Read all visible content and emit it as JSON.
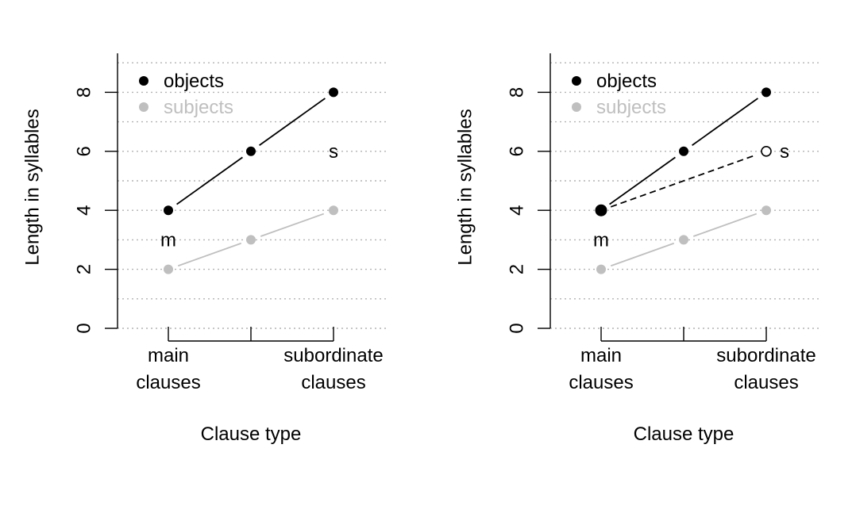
{
  "chart_data": [
    {
      "type": "line",
      "xlabel": "Clause type",
      "ylabel": "Length in syllables",
      "x_positions": [
        1,
        2,
        3
      ],
      "tick_labels": [
        {
          "lines": [
            "main",
            "clauses"
          ],
          "x": 1
        },
        {
          "lines": [
            ""
          ],
          "x": 2
        },
        {
          "lines": [
            "subordinate",
            "clauses"
          ],
          "x": 3
        }
      ],
      "ylim": [
        0,
        9
      ],
      "yticks": [
        0,
        2,
        4,
        6,
        8
      ],
      "grid": "horizontal-dotted",
      "legend_position": "top-left",
      "series": [
        {
          "name": "objects",
          "color": "#000000",
          "values": [
            4,
            6,
            8
          ]
        },
        {
          "name": "subjects",
          "color": "#bfbfbf",
          "values": [
            2,
            3,
            4
          ]
        }
      ],
      "annotations": [
        {
          "text": "m",
          "x": 1,
          "y": 3
        },
        {
          "text": "s",
          "x": 3,
          "y": 6
        }
      ]
    },
    {
      "type": "line",
      "xlabel": "Clause type",
      "ylabel": "Length in syllables",
      "x_positions": [
        1,
        2,
        3
      ],
      "tick_labels": [
        {
          "lines": [
            "main",
            "clauses"
          ],
          "x": 1
        },
        {
          "lines": [
            ""
          ],
          "x": 2
        },
        {
          "lines": [
            "subordinate",
            "clauses"
          ],
          "x": 3
        }
      ],
      "ylim": [
        0,
        9
      ],
      "yticks": [
        0,
        2,
        4,
        6,
        8
      ],
      "grid": "horizontal-dotted",
      "legend_position": "top-left",
      "series": [
        {
          "name": "objects",
          "color": "#000000",
          "values": [
            4,
            6,
            8
          ]
        },
        {
          "name": "subjects",
          "color": "#bfbfbf",
          "values": [
            2,
            3,
            4
          ]
        }
      ],
      "extra_segment": {
        "from": [
          1,
          4
        ],
        "to": [
          3,
          6
        ],
        "style": "dashed",
        "open_end_marker": true
      },
      "annotations": [
        {
          "text": "m",
          "x": 1,
          "y": 3
        },
        {
          "text": "s",
          "x": 3,
          "y": 6
        }
      ]
    }
  ]
}
